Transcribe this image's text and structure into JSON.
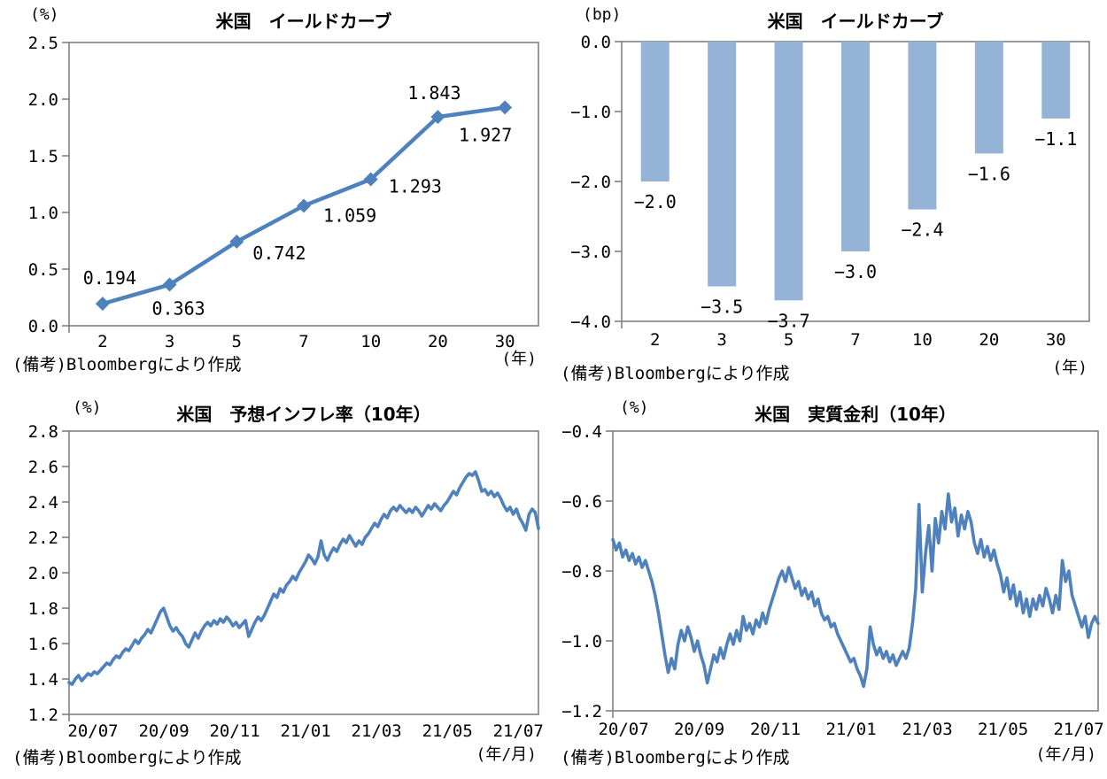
{
  "colors": {
    "axis": "#808080",
    "text": "#000000",
    "line": "#4F81BD",
    "bar": "#95B3D7"
  },
  "chart_data": [
    {
      "type": "line",
      "title": "米国　イールドカーブ",
      "unit_y": "(%)",
      "unit_x": "(年)",
      "note": "(備考)Bloombergにより作成",
      "categories": [
        "2",
        "3",
        "5",
        "7",
        "10",
        "20",
        "30"
      ],
      "values": [
        0.194,
        0.363,
        0.742,
        1.059,
        1.293,
        1.843,
        1.927
      ],
      "data_labels": [
        "0.194",
        "0.363",
        "0.742",
        "1.059",
        "1.293",
        "1.843",
        "1.927"
      ],
      "ylim": [
        0.0,
        2.5
      ],
      "ytick_step": 0.5,
      "ytick_decimals": 1,
      "line_color": "#4F81BD",
      "marker": "diamond",
      "grid": false,
      "legend": "none"
    },
    {
      "type": "bar",
      "title": "米国　イールドカーブ",
      "unit_y": "(bp)",
      "unit_x": "(年)",
      "note": "(備考)Bloombergにより作成",
      "categories": [
        "2",
        "3",
        "5",
        "7",
        "10",
        "20",
        "30"
      ],
      "values": [
        -2.0,
        -3.5,
        -3.7,
        -3.0,
        -2.4,
        -1.6,
        -1.1
      ],
      "data_labels": [
        "-2.0",
        "-3.5",
        "-3.7",
        "-3.0",
        "-2.4",
        "-1.6",
        "-1.1"
      ],
      "ylim": [
        -4.0,
        0.0
      ],
      "ytick_step": 1.0,
      "ytick_decimals": 1,
      "bar_color": "#95B3D7",
      "grid": false,
      "legend": "none"
    },
    {
      "type": "line",
      "title": "米国　予想インフレ率（10年）",
      "unit_y": "(%)",
      "unit_x": "(年/月)",
      "note": "(備考)Bloombergにより作成",
      "x_ticks": [
        "20/07",
        "20/09",
        "20/11",
        "21/01",
        "21/03",
        "21/05",
        "21/07"
      ],
      "values": [
        1.38,
        1.37,
        1.4,
        1.42,
        1.39,
        1.41,
        1.43,
        1.42,
        1.44,
        1.43,
        1.45,
        1.47,
        1.49,
        1.48,
        1.51,
        1.53,
        1.52,
        1.55,
        1.57,
        1.56,
        1.59,
        1.62,
        1.6,
        1.63,
        1.65,
        1.68,
        1.66,
        1.7,
        1.74,
        1.78,
        1.8,
        1.75,
        1.7,
        1.67,
        1.69,
        1.66,
        1.64,
        1.6,
        1.58,
        1.62,
        1.66,
        1.63,
        1.67,
        1.7,
        1.72,
        1.7,
        1.73,
        1.71,
        1.74,
        1.72,
        1.75,
        1.73,
        1.7,
        1.72,
        1.69,
        1.71,
        1.73,
        1.64,
        1.68,
        1.72,
        1.75,
        1.73,
        1.76,
        1.8,
        1.84,
        1.88,
        1.86,
        1.91,
        1.89,
        1.93,
        1.95,
        1.98,
        1.96,
        2.0,
        2.03,
        2.06,
        2.1,
        2.08,
        2.05,
        2.09,
        2.18,
        2.1,
        2.07,
        2.11,
        2.14,
        2.12,
        2.16,
        2.19,
        2.17,
        2.21,
        2.18,
        2.15,
        2.18,
        2.16,
        2.2,
        2.22,
        2.25,
        2.28,
        2.26,
        2.3,
        2.33,
        2.31,
        2.35,
        2.37,
        2.35,
        2.38,
        2.36,
        2.34,
        2.36,
        2.34,
        2.37,
        2.35,
        2.32,
        2.35,
        2.38,
        2.36,
        2.39,
        2.37,
        2.35,
        2.38,
        2.4,
        2.43,
        2.46,
        2.44,
        2.48,
        2.51,
        2.54,
        2.56,
        2.55,
        2.57,
        2.52,
        2.46,
        2.47,
        2.44,
        2.46,
        2.43,
        2.45,
        2.42,
        2.38,
        2.35,
        2.37,
        2.33,
        2.36,
        2.31,
        2.28,
        2.24,
        2.33,
        2.36,
        2.34,
        2.25
      ],
      "ylim": [
        1.2,
        2.8
      ],
      "ytick_step": 0.2,
      "ytick_decimals": 1,
      "line_color": "#4F81BD",
      "marker": "none",
      "grid": false,
      "legend": "none"
    },
    {
      "type": "line",
      "title": "米国　実質金利（10年）",
      "unit_y": "(%)",
      "unit_x": "(年/月)",
      "note": "(備考)Bloombergにより作成",
      "x_ticks": [
        "20/07",
        "20/09",
        "20/11",
        "21/01",
        "21/03",
        "21/05",
        "21/07"
      ],
      "values": [
        -0.71,
        -0.74,
        -0.72,
        -0.76,
        -0.74,
        -0.77,
        -0.75,
        -0.78,
        -0.76,
        -0.79,
        -0.77,
        -0.8,
        -0.83,
        -0.87,
        -0.92,
        -0.98,
        -1.04,
        -1.09,
        -1.05,
        -1.08,
        -1.01,
        -0.97,
        -1.0,
        -0.96,
        -0.99,
        -1.03,
        -1.0,
        -1.04,
        -1.07,
        -1.12,
        -1.08,
        -1.04,
        -1.06,
        -1.02,
        -1.05,
        -1.01,
        -0.98,
        -1.01,
        -0.97,
        -1.0,
        -0.93,
        -0.97,
        -0.95,
        -0.98,
        -0.94,
        -0.96,
        -0.92,
        -0.95,
        -0.91,
        -0.88,
        -0.85,
        -0.82,
        -0.8,
        -0.83,
        -0.79,
        -0.82,
        -0.85,
        -0.83,
        -0.87,
        -0.85,
        -0.88,
        -0.86,
        -0.9,
        -0.88,
        -0.92,
        -0.94,
        -0.93,
        -0.96,
        -0.95,
        -0.98,
        -1.0,
        -1.02,
        -1.04,
        -1.06,
        -1.05,
        -1.08,
        -1.1,
        -1.13,
        -1.08,
        -0.96,
        -1.01,
        -1.04,
        -1.02,
        -1.05,
        -1.03,
        -1.06,
        -1.04,
        -1.07,
        -1.05,
        -1.03,
        -1.05,
        -1.02,
        -0.95,
        -0.85,
        -0.61,
        -0.86,
        -0.75,
        -0.67,
        -0.8,
        -0.65,
        -0.72,
        -0.63,
        -0.68,
        -0.58,
        -0.66,
        -0.62,
        -0.7,
        -0.64,
        -0.68,
        -0.63,
        -0.66,
        -0.72,
        -0.75,
        -0.71,
        -0.76,
        -0.73,
        -0.77,
        -0.74,
        -0.78,
        -0.81,
        -0.86,
        -0.82,
        -0.88,
        -0.84,
        -0.9,
        -0.86,
        -0.92,
        -0.88,
        -0.93,
        -0.88,
        -0.91,
        -0.87,
        -0.9,
        -0.85,
        -0.88,
        -0.92,
        -0.87,
        -0.91,
        -0.77,
        -0.83,
        -0.8,
        -0.87,
        -0.9,
        -0.93,
        -0.96,
        -0.93,
        -0.99,
        -0.95,
        -0.93,
        -0.95
      ],
      "ylim": [
        -1.2,
        -0.4
      ],
      "ytick_step": 0.2,
      "ytick_decimals": 1,
      "line_color": "#4F81BD",
      "marker": "none",
      "grid": false,
      "legend": "none"
    }
  ]
}
